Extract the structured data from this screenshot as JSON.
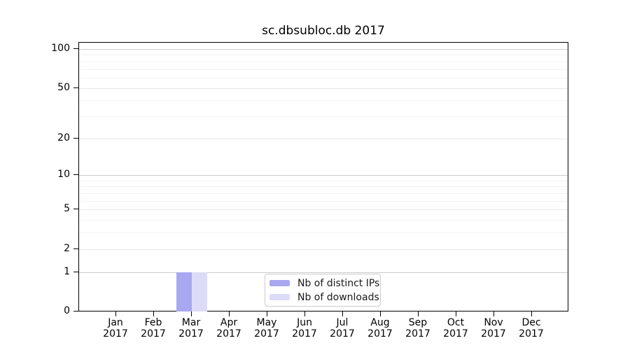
{
  "chart_data": {
    "type": "bar",
    "title": "sc.dbsubloc.db 2017",
    "categories": [
      "Jan\n2017",
      "Feb\n2017",
      "Mar\n2017",
      "Apr\n2017",
      "May\n2017",
      "Jun\n2017",
      "Jul\n2017",
      "Aug\n2017",
      "Sep\n2017",
      "Oct\n2017",
      "Nov\n2017",
      "Dec\n2017"
    ],
    "series": [
      {
        "name": "Nb of distinct IPs",
        "color": "#a8a8f0",
        "values": [
          0,
          0,
          1,
          0,
          0,
          0,
          0,
          0,
          0,
          0,
          0,
          0
        ]
      },
      {
        "name": "Nb of downloads",
        "color": "#dcdcf8",
        "values": [
          0,
          0,
          1,
          0,
          0,
          0,
          0,
          0,
          0,
          0,
          0,
          0
        ]
      }
    ],
    "y_scale": "log10(1+v)",
    "ylim": [
      0,
      113
    ],
    "y_ticks": [
      0,
      1,
      2,
      5,
      10,
      20,
      50,
      100
    ],
    "y_major_gridlines": [
      1,
      10,
      100
    ],
    "y_mid_gridlines": [
      2,
      5,
      20,
      50
    ],
    "y_minor_gridlines": [
      3,
      4,
      6,
      7,
      8,
      9,
      30,
      40,
      60,
      70,
      80,
      90
    ],
    "grid": true,
    "legend_position": "lower center",
    "colors": {
      "spine": "#000000",
      "grid_major": "#cbcbcb",
      "grid_mid": "#e7e7e7",
      "grid_minor": "#f2f2f2",
      "legend_border": "#cccccc"
    }
  }
}
